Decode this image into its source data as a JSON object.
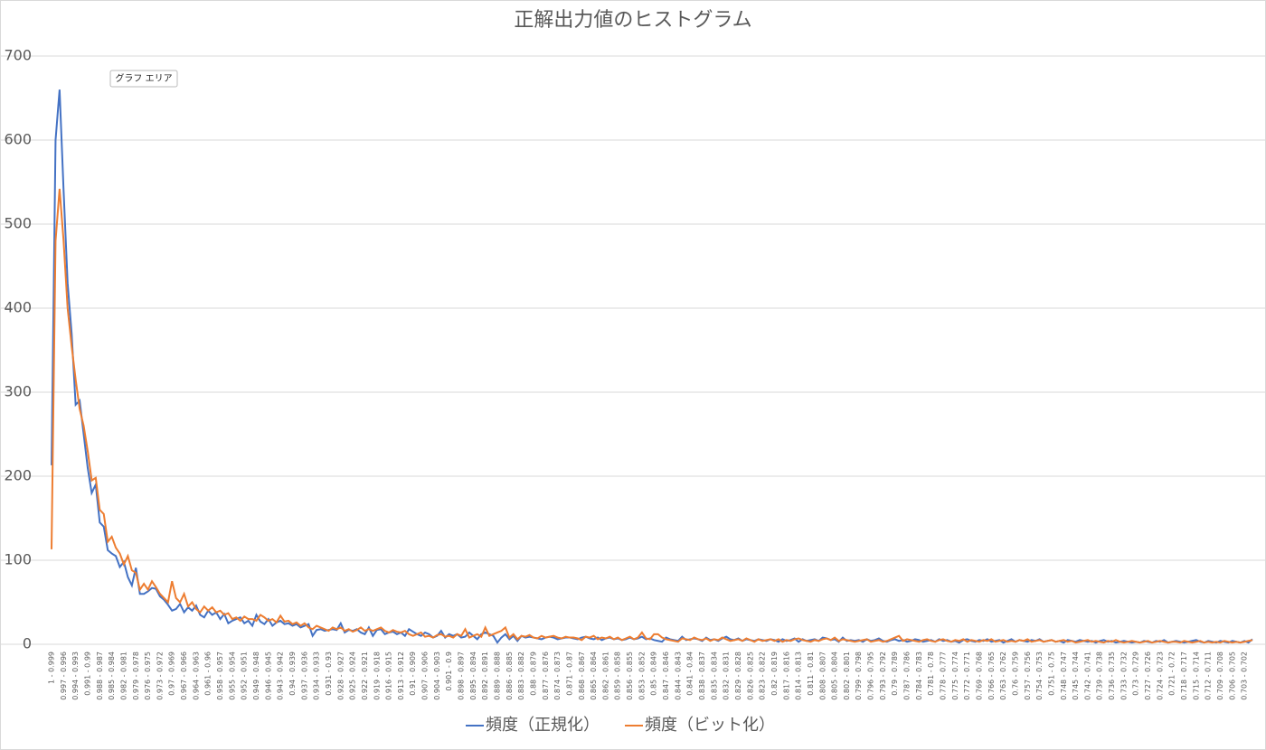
{
  "chart_data": {
    "type": "line",
    "title": "正解出力値のヒストグラム",
    "tooltip": "グラフ エリア",
    "categories": [
      "1 - 0.999",
      null,
      null,
      "0.997 - 0.996",
      null,
      null,
      "0.994 - 0.993",
      null,
      null,
      "0.991 - 0.99",
      null,
      null,
      "0.988 - 0.987",
      null,
      null,
      "0.985 - 0.984",
      null,
      null,
      "0.982 - 0.981",
      null,
      null,
      "0.979 - 0.978",
      null,
      null,
      "0.976 - 0.975",
      null,
      null,
      "0.973 - 0.972",
      null,
      null,
      "0.97 - 0.969",
      null,
      null,
      "0.967 - 0.966",
      null,
      null,
      "0.964 - 0.963",
      null,
      null,
      "0.961 - 0.96",
      null,
      null,
      "0.958 - 0.957",
      null,
      null,
      "0.955 - 0.954",
      null,
      null,
      "0.952 - 0.951",
      null,
      null,
      "0.949 - 0.948",
      null,
      null,
      "0.946 - 0.945",
      null,
      null,
      "0.943 - 0.942",
      null,
      null,
      "0.94 - 0.939",
      null,
      null,
      "0.937 - 0.936",
      null,
      null,
      "0.934 - 0.933",
      null,
      null,
      "0.931 - 0.93",
      null,
      null,
      "0.928 - 0.927",
      null,
      null,
      "0.925 - 0.924",
      null,
      null,
      "0.922 - 0.921",
      null,
      null,
      "0.919 - 0.918",
      null,
      null,
      "0.916 - 0.915",
      null,
      null,
      "0.913 - 0.912",
      null,
      null,
      "0.91 - 0.909",
      null,
      null,
      "0.907 - 0.906",
      null,
      null,
      "0.904 - 0.903",
      null,
      null,
      "0.901 - 0.9",
      null,
      null,
      "0.898 - 0.897",
      null,
      null,
      "0.895 - 0.894",
      null,
      null,
      "0.892 - 0.891",
      null,
      null,
      "0.889 - 0.888",
      null,
      null,
      "0.886 - 0.885",
      null,
      null,
      "0.883 - 0.882",
      null,
      null,
      "0.88 - 0.879",
      null,
      null,
      "0.877 - 0.876",
      null,
      null,
      "0.874 - 0.873",
      null,
      null,
      "0.871 - 0.87",
      null,
      null,
      "0.868 - 0.867",
      null,
      null,
      "0.865 - 0.864",
      null,
      null,
      "0.862 - 0.861",
      null,
      null,
      "0.859 - 0.858",
      null,
      null,
      "0.856 - 0.855",
      null,
      null,
      "0.853 - 0.852",
      null,
      null,
      "0.85 - 0.849",
      null,
      null,
      "0.847 - 0.846",
      null,
      null,
      "0.844 - 0.843",
      null,
      null,
      "0.841 - 0.84",
      null,
      null,
      "0.838 - 0.837",
      null,
      null,
      "0.835 - 0.834",
      null,
      null,
      "0.832 - 0.831",
      null,
      null,
      "0.829 - 0.828",
      null,
      null,
      "0.826 - 0.825",
      null,
      null,
      "0.823 - 0.822",
      null,
      null,
      "0.82 - 0.819",
      null,
      null,
      "0.817 - 0.816",
      null,
      null,
      "0.814 - 0.813",
      null,
      null,
      "0.811 - 0.81",
      null,
      null,
      "0.808 - 0.807",
      null,
      null,
      "0.805 - 0.804",
      null,
      null,
      "0.802 - 0.801",
      null,
      null,
      "0.799 - 0.798",
      null,
      null,
      "0.796 - 0.795",
      null,
      null,
      "0.793 - 0.792",
      null,
      null,
      "0.79 - 0.789",
      null,
      null,
      "0.787 - 0.786",
      null,
      null,
      "0.784 - 0.783",
      null,
      null,
      "0.781 - 0.78",
      null,
      null,
      "0.778 - 0.777",
      null,
      null,
      "0.775 - 0.774",
      null,
      null,
      "0.772 - 0.771",
      null,
      null,
      "0.769 - 0.768",
      null,
      null,
      "0.766 - 0.765",
      null,
      null,
      "0.763 - 0.762",
      null,
      null,
      "0.76 - 0.759",
      null,
      null,
      "0.757 - 0.756",
      null,
      null,
      "0.754 - 0.753",
      null,
      null,
      "0.751 - 0.75",
      null,
      null,
      "0.748 - 0.747",
      null,
      null,
      "0.745 - 0.744",
      null,
      null,
      "0.742 - 0.741",
      null,
      null,
      "0.739 - 0.738",
      null,
      null,
      "0.736 - 0.735",
      null,
      null,
      "0.733 - 0.732",
      null,
      null,
      "0.73 - 0.729",
      null,
      null,
      "0.727 - 0.726",
      null,
      null,
      "0.724 - 0.723",
      null,
      null,
      "0.721 - 0.72",
      null,
      null,
      "0.718 - 0.717",
      null,
      null,
      "0.715 - 0.714",
      null,
      null,
      "0.712 - 0.711",
      null,
      null,
      "0.709 - 0.708",
      null,
      null,
      "0.706 - 0.705",
      null,
      null,
      "0.703 - 0.702",
      null,
      null
    ],
    "series": [
      {
        "name": "頻度（正規化）",
        "color": "#4472c4",
        "values": [
          213,
          600,
          660,
          540,
          430,
          370,
          285,
          290,
          250,
          210,
          180,
          190,
          145,
          140,
          112,
          108,
          105,
          92,
          98,
          80,
          70,
          91,
          60,
          60,
          63,
          67,
          66,
          57,
          53,
          47,
          40,
          42,
          48,
          38,
          44,
          40,
          46,
          35,
          32,
          40,
          35,
          38,
          30,
          36,
          25,
          28,
          30,
          32,
          25,
          28,
          22,
          35,
          27,
          24,
          30,
          22,
          26,
          28,
          24,
          25,
          22,
          24,
          20,
          22,
          24,
          10,
          17,
          18,
          16,
          17,
          18,
          17,
          25,
          14,
          17,
          16,
          18,
          14,
          12,
          20,
          10,
          17,
          18,
          12,
          14,
          15,
          12,
          14,
          10,
          18,
          15,
          12,
          10,
          14,
          12,
          8,
          10,
          16,
          8,
          12,
          10,
          12,
          8,
          9,
          14,
          10,
          6,
          12,
          14,
          12,
          10,
          2,
          8,
          12,
          6,
          10,
          4,
          10,
          8,
          9,
          8,
          7,
          6,
          8,
          9,
          8,
          6,
          7,
          8,
          8,
          7,
          6,
          8,
          9,
          7,
          6,
          8,
          5,
          7,
          8,
          6,
          7,
          5,
          6,
          8,
          6,
          7,
          9,
          6,
          7,
          5,
          4,
          3,
          8,
          6,
          5,
          4,
          9,
          5,
          6,
          7,
          6,
          4,
          8,
          5,
          6,
          4,
          7,
          9,
          6,
          5,
          7,
          4,
          6,
          5,
          4,
          6,
          5,
          4,
          6,
          5,
          3,
          6,
          4,
          5,
          7,
          3,
          6,
          4,
          5,
          6,
          4,
          8,
          7,
          5,
          6,
          3,
          8,
          4,
          5,
          4,
          5,
          3,
          6,
          4,
          5,
          7,
          4,
          3,
          5,
          6,
          4,
          5,
          3,
          4,
          6,
          5,
          3,
          4,
          5,
          3,
          6,
          4,
          5,
          3,
          4,
          2,
          5,
          6,
          4,
          3,
          5,
          4,
          6,
          3,
          4,
          5,
          2,
          4,
          6,
          3,
          5,
          4,
          3,
          5,
          4,
          6,
          3,
          4,
          5,
          3,
          4,
          2,
          5,
          4,
          3,
          5,
          4,
          3,
          4,
          2,
          4,
          5,
          3,
          4,
          2,
          3,
          4,
          3,
          2,
          3,
          2,
          4,
          3,
          2,
          4,
          3,
          5,
          2,
          3,
          4,
          3,
          2,
          3,
          4,
          5,
          3,
          2,
          4,
          3,
          2,
          4,
          3,
          2,
          4,
          3,
          2,
          4,
          2,
          6
        ]
      },
      {
        "name": "頻度（ビット化）",
        "color": "#ed7d31",
        "values": [
          113,
          480,
          542,
          480,
          400,
          355,
          315,
          280,
          260,
          230,
          195,
          198,
          160,
          155,
          122,
          128,
          115,
          108,
          95,
          105,
          88,
          85,
          65,
          72,
          65,
          75,
          68,
          60,
          55,
          50,
          75,
          55,
          50,
          60,
          45,
          50,
          42,
          38,
          45,
          40,
          44,
          38,
          40,
          35,
          37,
          30,
          32,
          28,
          33,
          30,
          30,
          28,
          35,
          32,
          28,
          30,
          26,
          34,
          27,
          28,
          24,
          26,
          22,
          25,
          20,
          18,
          22,
          20,
          18,
          16,
          20,
          18,
          20,
          16,
          18,
          15,
          17,
          20,
          16,
          18,
          16,
          18,
          20,
          16,
          14,
          17,
          15,
          14,
          16,
          12,
          10,
          12,
          14,
          9,
          10,
          8,
          11,
          12,
          9,
          10,
          8,
          12,
          10,
          18,
          8,
          10,
          12,
          9,
          20,
          10,
          12,
          14,
          16,
          20,
          8,
          12,
          6,
          10,
          9,
          11,
          8,
          7,
          10,
          8,
          9,
          10,
          8,
          7,
          9,
          8,
          8,
          7,
          5,
          9,
          8,
          10,
          6,
          8,
          7,
          9,
          6,
          8,
          5,
          7,
          9,
          6,
          8,
          14,
          7,
          6,
          12,
          12,
          8,
          6,
          5,
          4,
          3,
          7,
          6,
          5,
          8,
          6,
          5,
          7,
          4,
          6,
          5,
          8,
          6,
          4,
          5,
          6,
          4,
          7,
          5,
          3,
          6,
          4,
          5,
          6,
          4,
          6,
          3,
          5,
          4,
          6,
          7,
          5,
          4,
          3,
          5,
          4,
          6,
          7,
          5,
          8,
          4,
          6,
          5,
          4,
          3,
          4,
          5,
          6,
          3,
          4,
          5,
          3,
          4,
          6,
          8,
          10,
          4,
          6,
          5,
          4,
          3,
          5,
          6,
          4,
          3,
          5,
          6,
          4,
          3,
          5,
          4,
          6,
          3,
          5,
          4,
          3,
          5,
          4,
          6,
          3,
          4,
          5,
          3,
          4,
          3,
          5,
          4,
          6,
          3,
          4,
          5,
          3,
          4,
          5,
          3,
          4,
          5,
          3,
          4,
          2,
          3,
          4,
          5,
          3,
          4,
          3,
          2,
          4,
          3,
          5,
          3,
          2,
          3,
          4,
          3,
          2,
          3,
          4,
          2,
          3,
          4,
          3,
          2,
          3,
          3,
          2,
          4,
          3,
          2,
          3,
          4,
          2,
          3,
          2,
          3,
          2,
          4,
          3,
          2,
          3,
          2,
          3,
          4,
          5
        ]
      }
    ],
    "ylim": [
      0,
      700
    ],
    "yticks": [
      0,
      100,
      200,
      300,
      400,
      500,
      600,
      700
    ],
    "grid": true,
    "legend": "bottom"
  }
}
